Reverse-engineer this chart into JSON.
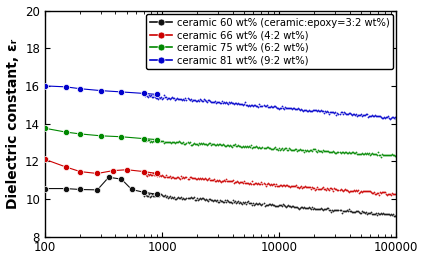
{
  "ylabel": "Dielectric constant, εᵣ",
  "xlim": [
    100,
    100000
  ],
  "ylim": [
    8,
    20
  ],
  "yticks": [
    8,
    10,
    12,
    14,
    16,
    18,
    20
  ],
  "xticks": [
    100,
    1000,
    10000,
    100000
  ],
  "xtick_labels": [
    "100",
    "1000",
    "10000",
    "100000"
  ],
  "series": [
    {
      "label": "ceramic 60 wt% (ceramic:epoxy=3:2 wt%)",
      "color": "#111111",
      "anchor_x": [
        100,
        150,
        200,
        280,
        350,
        450,
        550,
        700,
        900
      ],
      "anchor_y": [
        10.55,
        10.55,
        10.5,
        10.48,
        11.15,
        11.05,
        10.5,
        10.35,
        10.25
      ],
      "tail_start": 10.22,
      "tail_end": 9.15,
      "tail_x_start": 700
    },
    {
      "label": "ceramic 66 wt% (4:2 wt%)",
      "color": "#cc0000",
      "anchor_x": [
        100,
        150,
        200,
        280,
        380,
        500,
        700,
        900
      ],
      "anchor_y": [
        12.1,
        11.7,
        11.45,
        11.35,
        11.5,
        11.55,
        11.45,
        11.35
      ],
      "tail_start": 11.3,
      "tail_end": 10.25,
      "tail_x_start": 700
    },
    {
      "label": "ceramic 75 wt% (6:2 wt%)",
      "color": "#008800",
      "anchor_x": [
        100,
        150,
        200,
        300,
        450,
        700,
        900
      ],
      "anchor_y": [
        13.75,
        13.55,
        13.45,
        13.35,
        13.3,
        13.2,
        13.15
      ],
      "tail_start": 13.1,
      "tail_end": 12.3,
      "tail_x_start": 700
    },
    {
      "label": "ceramic 81 wt% (9:2 wt%)",
      "color": "#0000cc",
      "anchor_x": [
        100,
        150,
        200,
        300,
        450,
        700,
        900
      ],
      "anchor_y": [
        16.0,
        15.95,
        15.85,
        15.75,
        15.68,
        15.6,
        15.55
      ],
      "tail_start": 15.5,
      "tail_end": 14.3,
      "tail_x_start": 700
    }
  ],
  "background_color": "#ffffff",
  "legend_fontsize": 7.2,
  "axis_label_fontsize": 10,
  "tick_fontsize": 8.5
}
